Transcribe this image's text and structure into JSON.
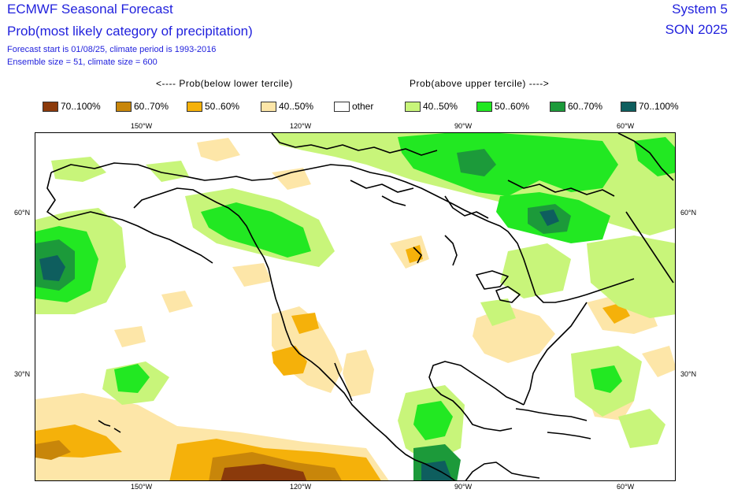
{
  "header": {
    "title": "ECMWF Seasonal Forecast",
    "subtitle": "Prob(most likely category of precipitation)",
    "info_line1": "Forecast start is 01/08/25, climate period is 1993-2016",
    "info_line2": "Ensemble size = 51, climate size = 600",
    "system": "System 5",
    "season": "SON 2025"
  },
  "legend": {
    "below_heading": "<---- Prob(below lower tercile)",
    "above_heading": "Prob(above upper tercile) ---->",
    "items": [
      {
        "label": "70..100%",
        "color": "#8b3a0b"
      },
      {
        "label": "60..70%",
        "color": "#c8860a"
      },
      {
        "label": "50..60%",
        "color": "#f5b10a"
      },
      {
        "label": "40..50%",
        "color": "#fde6a8"
      },
      {
        "label": "other",
        "color": "#ffffff"
      },
      {
        "label": "40..50%",
        "color": "#c8f57a"
      },
      {
        "label": "50..60%",
        "color": "#22e822"
      },
      {
        "label": "60..70%",
        "color": "#1c9a3a"
      },
      {
        "label": "70..100%",
        "color": "#0e5e5e"
      }
    ]
  },
  "axes": {
    "lon_top": [
      "150°W",
      "120°W",
      "90°W",
      "60°W"
    ],
    "lon_bottom": [
      "150°W",
      "120°W",
      "90°W",
      "60°W"
    ],
    "lat_left": [
      "60°N",
      "30°N"
    ],
    "lat_right": [
      "60°N",
      "30°N"
    ]
  },
  "colors": {
    "text_blue": "#2222dd",
    "coastline": "#000000"
  }
}
